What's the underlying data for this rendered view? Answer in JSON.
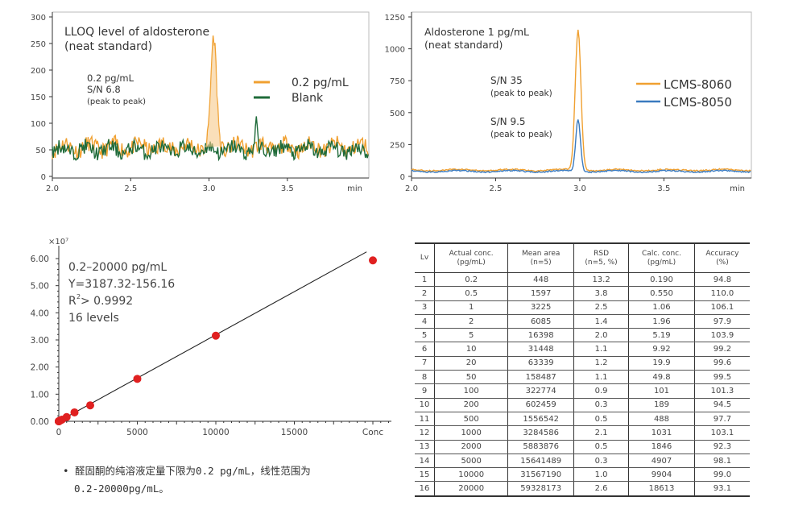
{
  "chart_data": [
    {
      "type": "line",
      "title": "LLOQ level of aldosterone",
      "subtitle": "(neat standard)",
      "xlabel": "min",
      "ylabel": "",
      "xlim": [
        2.0,
        4.02
      ],
      "ylim": [
        0,
        300
      ],
      "xticks": [
        "2.0",
        "2.5",
        "3.0",
        "3.5"
      ],
      "yticks": [
        "0",
        "50",
        "100",
        "150",
        "200",
        "250",
        "300"
      ],
      "annotation": [
        "0.2 pg/mL",
        "S/N 6.8",
        "(peak to peak)"
      ],
      "legend_position": "top-right",
      "series": [
        {
          "name": "0.2 pg/mL",
          "color": "#f0a030",
          "baseline": 55,
          "noise": 15,
          "peak_time": 3.03,
          "peak_height": 200
        },
        {
          "name": "Blank",
          "color": "#1f6b3a",
          "baseline": 50,
          "noise": 14,
          "peak_time": 3.3,
          "peak_height": 100
        }
      ]
    },
    {
      "type": "line",
      "title": "Aldosterone 1 pg/mL",
      "subtitle": "(neat standard)",
      "xlabel": "min",
      "ylabel": "",
      "xlim": [
        2.0,
        4.02
      ],
      "ylim": [
        0,
        1250
      ],
      "xticks": [
        "2.0",
        "2.5",
        "3.0",
        "3.5"
      ],
      "yticks": [
        "0",
        "250",
        "500",
        "750",
        "1000",
        "1250"
      ],
      "annotations": [
        [
          "S/N 35",
          "(peak to peak)"
        ],
        [
          "S/N 9.5",
          "(peak to peak)"
        ]
      ],
      "legend_position": "right",
      "series": [
        {
          "name": "LCMS-8060",
          "color": "#f0a030",
          "baseline": 50,
          "peak_time": 2.99,
          "peak_height": 1100
        },
        {
          "name": "LCMS-8050",
          "color": "#3a7abf",
          "baseline": 40,
          "peak_time": 2.99,
          "peak_height": 410
        }
      ]
    },
    {
      "type": "scatter",
      "title": "",
      "xlabel": "Conc",
      "ylabel": "",
      "y_multiplier": "×10⁷",
      "xlim": [
        0,
        20000
      ],
      "ylim": [
        0,
        6
      ],
      "xticks": [
        "0",
        "5000",
        "10000",
        "15000"
      ],
      "yticks": [
        "0.00",
        "1.00",
        "2.00",
        "3.00",
        "4.00",
        "5.00",
        "6.00"
      ],
      "annotation": [
        "0.2–20000 pg/mL",
        "Y=3187.32-156.16",
        "R",
        "> 0.9992",
        "16 levels"
      ],
      "x": [
        0.2,
        0.5,
        1,
        2,
        5,
        10,
        20,
        50,
        100,
        200,
        500,
        1000,
        2000,
        5000,
        10000,
        20000
      ],
      "y": [
        448,
        1597,
        3225,
        6085,
        16398,
        31448,
        63339,
        158487,
        322774,
        602459,
        1556542,
        3284586,
        5883876,
        15641489,
        31567190,
        59328173
      ],
      "fit": {
        "slope": 3187.32,
        "intercept": -156.16
      },
      "point_color": "#e02020"
    },
    {
      "type": "table",
      "headers": [
        [
          "Lv",
          ""
        ],
        [
          "Actual conc.",
          "(pg/mL)"
        ],
        [
          "Mean area",
          "(n=5)"
        ],
        [
          "RSD",
          "(n=5, %)"
        ],
        [
          "Calc. conc.",
          "(pg/mL)"
        ],
        [
          "Accuracy",
          "(%)"
        ]
      ],
      "rows": [
        [
          "1",
          "0.2",
          "448",
          "13.2",
          "0.190",
          "94.8"
        ],
        [
          "2",
          "0.5",
          "1597",
          "3.8",
          "0.550",
          "110.0"
        ],
        [
          "3",
          "1",
          "3225",
          "2.5",
          "1.06",
          "106.1"
        ],
        [
          "4",
          "2",
          "6085",
          "1.4",
          "1.96",
          "97.9"
        ],
        [
          "5",
          "5",
          "16398",
          "2.0",
          "5.19",
          "103.9"
        ],
        [
          "6",
          "10",
          "31448",
          "1.1",
          "9.92",
          "99.2"
        ],
        [
          "7",
          "20",
          "63339",
          "1.2",
          "19.9",
          "99.6"
        ],
        [
          "8",
          "50",
          "158487",
          "1.1",
          "49.8",
          "99.5"
        ],
        [
          "9",
          "100",
          "322774",
          "0.9",
          "101",
          "101.3"
        ],
        [
          "10",
          "200",
          "602459",
          "0.3",
          "189",
          "94.5"
        ],
        [
          "11",
          "500",
          "1556542",
          "0.5",
          "488",
          "97.7"
        ],
        [
          "12",
          "1000",
          "3284586",
          "2.1",
          "1031",
          "103.1"
        ],
        [
          "13",
          "2000",
          "5883876",
          "0.5",
          "1846",
          "92.3"
        ],
        [
          "14",
          "5000",
          "15641489",
          "0.3",
          "4907",
          "98.1"
        ],
        [
          "15",
          "10000",
          "31567190",
          "1.0",
          "9904",
          "99.0"
        ],
        [
          "16",
          "20000",
          "59328173",
          "2.6",
          "18613",
          "93.1"
        ]
      ]
    }
  ],
  "note": {
    "line1": "• 醛固酮的纯溶液定量下限为0.2 pg/mL，线性范围为",
    "line2": "0.2-20000pg/mL。"
  }
}
